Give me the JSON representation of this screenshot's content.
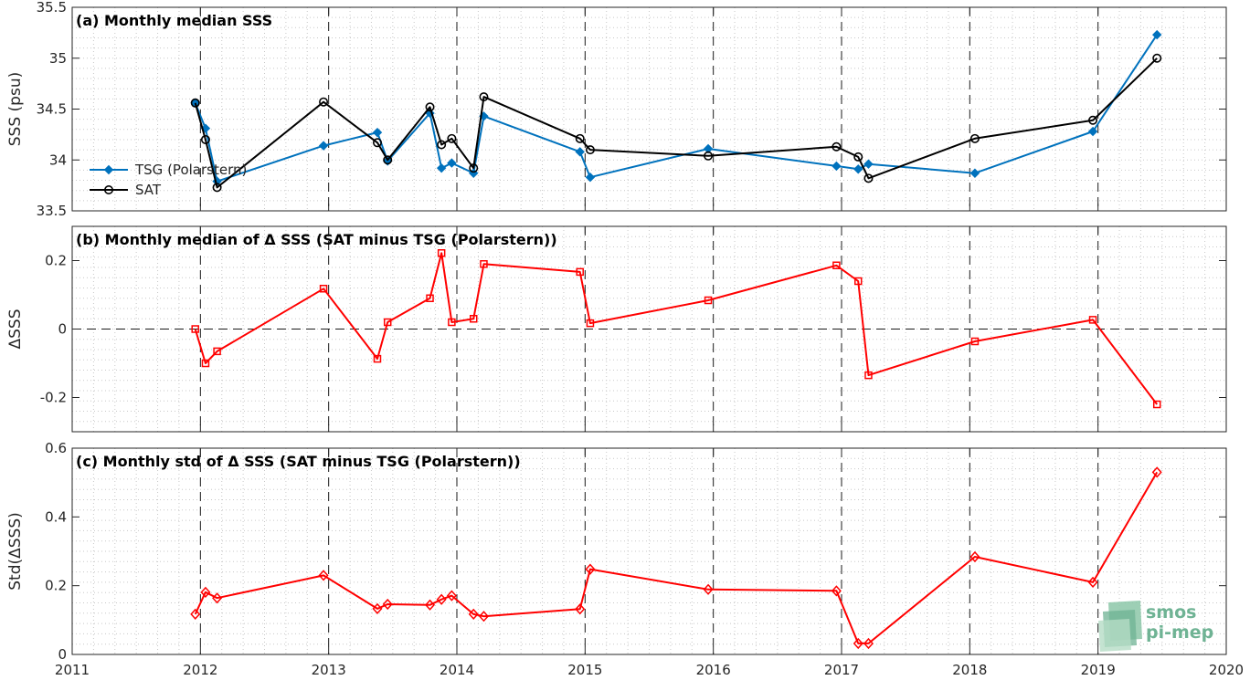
{
  "chart_data": [
    {
      "type": "line",
      "title": "(a) Monthly median SSS",
      "ylabel": "SSS (psu)",
      "xlim": [
        2011,
        2020
      ],
      "ylim": [
        33.5,
        35.5
      ],
      "yticks": [
        33.5,
        34,
        34.5,
        35,
        35.5
      ],
      "ytick_labels": [
        "33.5",
        "34",
        "34.5",
        "35",
        "35.5"
      ],
      "grid": true,
      "legend_position": "left",
      "series": [
        {
          "name": "TSG (Polarstern)",
          "color": "#0072bd",
          "marker": "filled-diamond",
          "x": [
            2011.96,
            2012.04,
            2012.13,
            2012.96,
            2013.38,
            2013.46,
            2013.79,
            2013.88,
            2013.96,
            2014.13,
            2014.21,
            2014.96,
            2015.04,
            2015.96,
            2016.96,
            2017.13,
            2017.21,
            2018.04,
            2018.96,
            2019.46
          ],
          "y": [
            34.56,
            34.31,
            33.79,
            34.14,
            34.27,
            33.99,
            34.46,
            33.92,
            33.97,
            33.87,
            34.43,
            34.08,
            33.83,
            34.11,
            33.94,
            33.91,
            33.96,
            33.87,
            34.28,
            35.23
          ]
        },
        {
          "name": "SAT",
          "color": "#000000",
          "marker": "open-circle",
          "x": [
            2011.96,
            2012.04,
            2012.13,
            2012.96,
            2013.38,
            2013.46,
            2013.79,
            2013.88,
            2013.96,
            2014.13,
            2014.21,
            2014.96,
            2015.04,
            2015.96,
            2016.96,
            2017.13,
            2017.21,
            2018.04,
            2018.96,
            2019.46
          ],
          "y": [
            34.56,
            34.2,
            33.73,
            34.57,
            34.17,
            34.0,
            34.52,
            34.15,
            34.21,
            33.92,
            34.62,
            34.21,
            34.1,
            34.04,
            34.13,
            34.03,
            33.82,
            34.21,
            34.39,
            35.0
          ]
        }
      ]
    },
    {
      "type": "line",
      "title": "(b) Monthly median of Δ SSS (SAT minus TSG (Polarstern))",
      "ylabel": "ΔSSS",
      "xlim": [
        2011,
        2020
      ],
      "ylim": [
        -0.3,
        0.3
      ],
      "yticks": [
        -0.2,
        0,
        0.2
      ],
      "ytick_labels": [
        "-0.2",
        "0",
        "0.2"
      ],
      "zero_line": true,
      "grid": true,
      "series": [
        {
          "color": "#ff0000",
          "marker": "open-square",
          "x": [
            2011.96,
            2012.04,
            2012.13,
            2012.96,
            2013.38,
            2013.46,
            2013.79,
            2013.88,
            2013.96,
            2014.13,
            2014.21,
            2014.96,
            2015.04,
            2015.96,
            2016.96,
            2017.13,
            2017.21,
            2018.04,
            2018.96,
            2019.46
          ],
          "y": [
            0.0,
            -0.1,
            -0.065,
            0.118,
            -0.087,
            0.02,
            0.09,
            0.222,
            0.02,
            0.03,
            0.19,
            0.167,
            0.017,
            0.084,
            0.186,
            0.14,
            -0.135,
            -0.036,
            0.027,
            -0.22
          ]
        }
      ]
    },
    {
      "type": "line",
      "title": "(c) Monthly std of Δ SSS (SAT minus TSG (Polarstern))",
      "ylabel": "Std(ΔSSS)",
      "xlabel": "",
      "xlim": [
        2011,
        2020
      ],
      "ylim": [
        0,
        0.6
      ],
      "yticks": [
        0,
        0.2,
        0.4,
        0.6
      ],
      "ytick_labels": [
        "0",
        "0.2",
        "0.4",
        "0.6"
      ],
      "xticks": [
        2011,
        2012,
        2013,
        2014,
        2015,
        2016,
        2017,
        2018,
        2019,
        2020
      ],
      "xtick_labels": [
        "2011",
        "2012",
        "2013",
        "2014",
        "2015",
        "2016",
        "2017",
        "2018",
        "2019",
        "2020"
      ],
      "grid": true,
      "series": [
        {
          "color": "#ff0000",
          "marker": "open-diamond",
          "x": [
            2011.96,
            2012.04,
            2012.13,
            2012.96,
            2013.38,
            2013.46,
            2013.79,
            2013.88,
            2013.96,
            2014.13,
            2014.21,
            2014.96,
            2015.04,
            2015.96,
            2016.96,
            2017.13,
            2017.21,
            2018.04,
            2018.96,
            2019.46
          ],
          "y": [
            0.117,
            0.181,
            0.164,
            0.23,
            0.133,
            0.146,
            0.144,
            0.16,
            0.171,
            0.117,
            0.111,
            0.132,
            0.248,
            0.189,
            0.185,
            0.032,
            0.032,
            0.284,
            0.21,
            0.53
          ]
        }
      ]
    }
  ],
  "logo": {
    "line1": "smos",
    "line2": "pi-mep",
    "color": "#6fb394"
  }
}
